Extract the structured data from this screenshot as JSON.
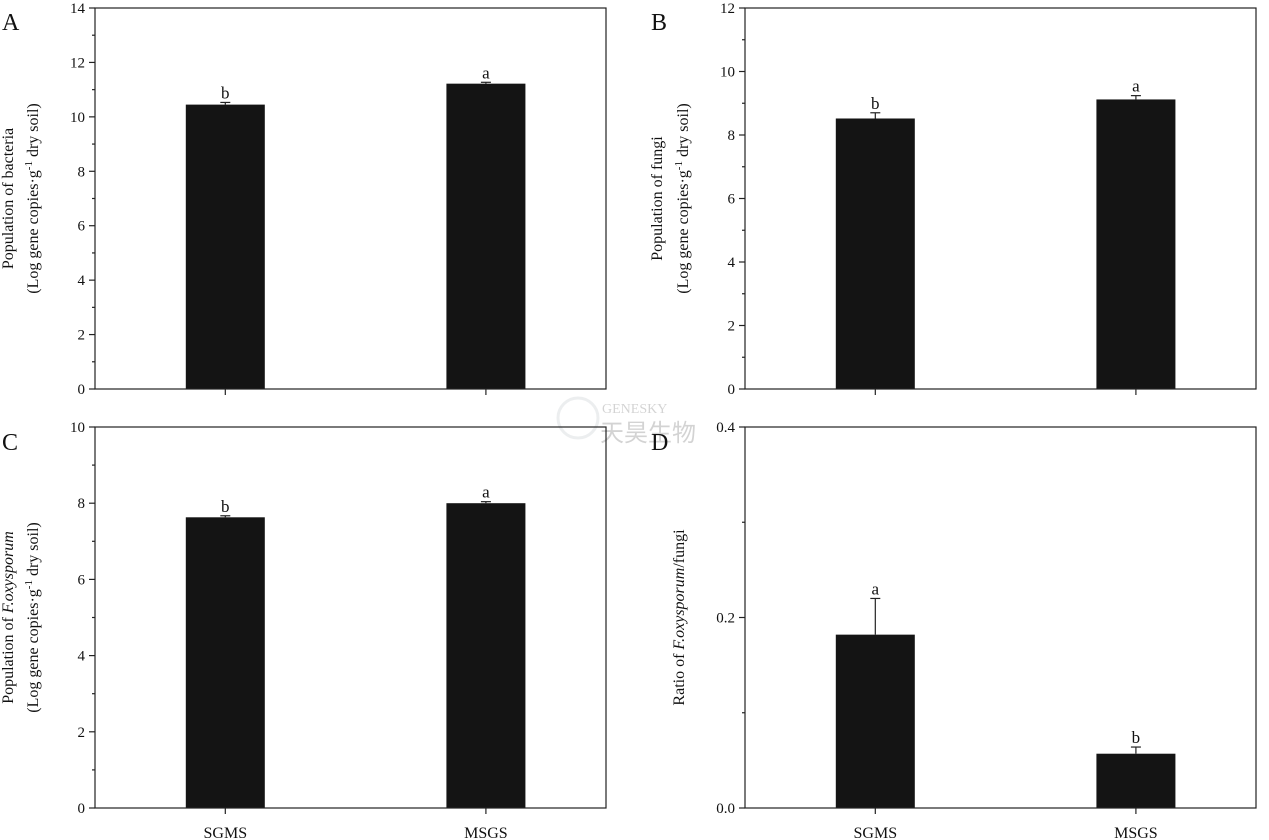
{
  "watermark": {
    "line1": "GENESKY",
    "line2": "天昊生物"
  },
  "chart_data": [
    {
      "panel": "A",
      "type": "bar",
      "categories": [
        "SGMS",
        "MSGS"
      ],
      "values": [
        10.45,
        11.22
      ],
      "errors": [
        0.08,
        0.05
      ],
      "significance": [
        "b",
        "a"
      ],
      "ylabel_line1": "Population of bacteria",
      "ylabel_line2": "(Log gene copies·g⁻¹ dry soil)",
      "ylim": [
        0,
        14
      ],
      "yticks": [
        0,
        2,
        4,
        6,
        8,
        10,
        12,
        14
      ],
      "tick_labels": [
        "0",
        "2",
        "4",
        "6",
        "8",
        "10",
        "12",
        "14"
      ],
      "show_xlabels": false
    },
    {
      "panel": "B",
      "type": "bar",
      "categories": [
        "SGMS",
        "MSGS"
      ],
      "values": [
        8.52,
        9.12
      ],
      "errors": [
        0.18,
        0.12
      ],
      "significance": [
        "b",
        "a"
      ],
      "ylabel_line1": "Population of fungi",
      "ylabel_line2": "(Log gene copies·g⁻¹ dry soil)",
      "ylim": [
        0,
        12
      ],
      "yticks": [
        0,
        2,
        4,
        6,
        8,
        10,
        12
      ],
      "tick_labels": [
        "0",
        "2",
        "4",
        "6",
        "8",
        "10",
        "12"
      ],
      "show_xlabels": false
    },
    {
      "panel": "C",
      "type": "bar",
      "categories": [
        "SGMS",
        "MSGS"
      ],
      "values": [
        7.63,
        8.0
      ],
      "errors": [
        0.04,
        0.04
      ],
      "significance": [
        "b",
        "a"
      ],
      "ylabel_line1_pre": "Population of ",
      "ylabel_line1_italic": "F.oxysporum",
      "ylabel_line2": "(Log gene copies·g⁻¹ dry soil)",
      "ylim": [
        0,
        10
      ],
      "yticks": [
        0,
        2,
        4,
        6,
        8,
        10
      ],
      "tick_labels": [
        "0",
        "2",
        "4",
        "6",
        "8",
        "10"
      ],
      "show_xlabels": true
    },
    {
      "panel": "D",
      "type": "bar",
      "categories": [
        "SGMS",
        "MSGS"
      ],
      "values": [
        0.182,
        0.057
      ],
      "errors": [
        0.038,
        0.007
      ],
      "significance": [
        "a",
        "b"
      ],
      "ylabel_line1_pre": "Ratio of ",
      "ylabel_line1_italic": "F.oxysporum",
      "ylabel_line1_post": "/fungi",
      "ylim": [
        0,
        0.4
      ],
      "yticks": [
        0,
        0.2,
        0.4
      ],
      "tick_labels": [
        "0.0",
        "0.2",
        "0.4"
      ],
      "minor_yticks": [
        0.1,
        0.3
      ],
      "show_xlabels": true
    }
  ]
}
